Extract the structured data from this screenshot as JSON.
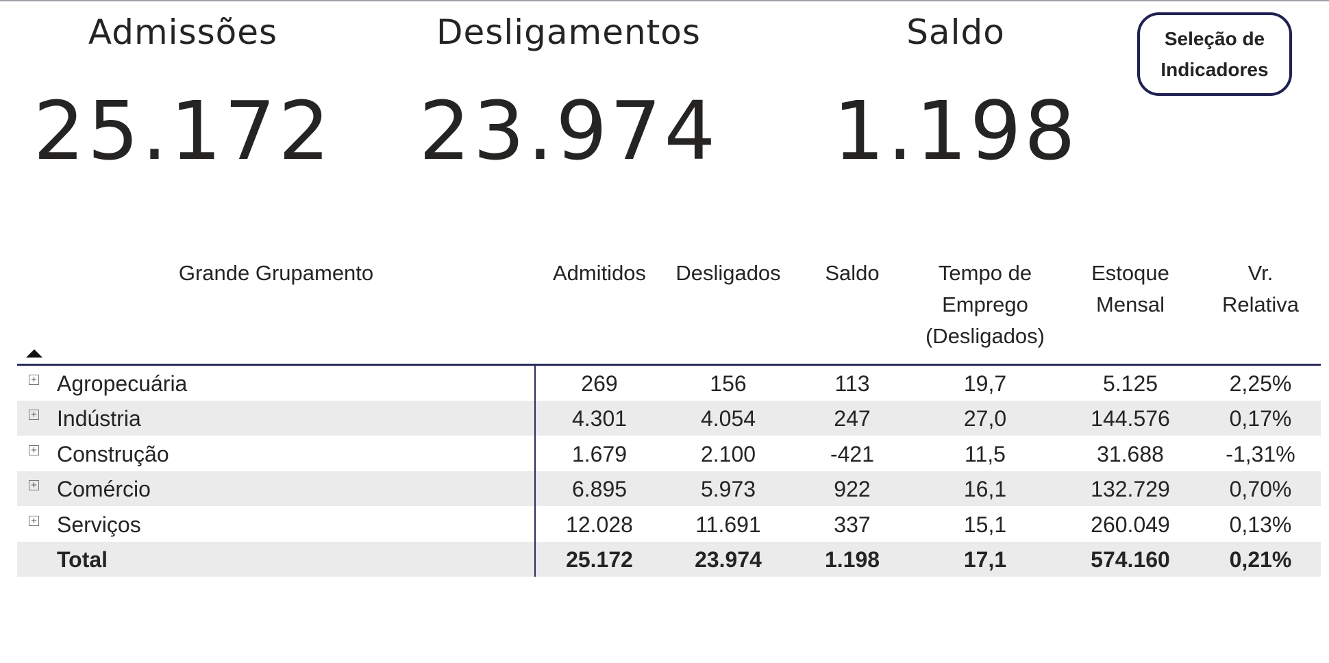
{
  "kpis": [
    {
      "title": "Admissões",
      "value": "25.172"
    },
    {
      "title": "Desligamentos",
      "value": "23.974"
    },
    {
      "title": "Saldo",
      "value": "1.198"
    }
  ],
  "selection_button": {
    "line1": "Seleção de",
    "line2": "Indicadores"
  },
  "table": {
    "headers": [
      {
        "lines": [
          "Grande Grupamento"
        ]
      },
      {
        "lines": [
          "Admitidos"
        ]
      },
      {
        "lines": [
          "Desligados"
        ]
      },
      {
        "lines": [
          "Saldo"
        ]
      },
      {
        "lines": [
          "Tempo de",
          "Emprego",
          "(Desligados)"
        ]
      },
      {
        "lines": [
          "Estoque",
          "Mensal"
        ]
      },
      {
        "lines": [
          "Vr.",
          "Relativa"
        ]
      }
    ],
    "sort_icon": "triangle-up",
    "rows": [
      [
        "Agropecuária",
        "269",
        "156",
        "113",
        "19,7",
        "5.125",
        "2,25%"
      ],
      [
        "Indústria",
        "4.301",
        "4.054",
        "247",
        "27,0",
        "144.576",
        "0,17%"
      ],
      [
        "Construção",
        "1.679",
        "2.100",
        "-421",
        "11,5",
        "31.688",
        "-1,31%"
      ],
      [
        "Comércio",
        "6.895",
        "5.973",
        "922",
        "16,1",
        "132.729",
        "0,70%"
      ],
      [
        "Serviços",
        "12.028",
        "11.691",
        "337",
        "15,1",
        "260.049",
        "0,13%"
      ]
    ],
    "total": [
      "Total",
      "25.172",
      "23.974",
      "1.198",
      "17,1",
      "574.160",
      "0,21%"
    ]
  },
  "colors": {
    "accent": "#1f2153",
    "alt_row": "#ebebeb"
  }
}
